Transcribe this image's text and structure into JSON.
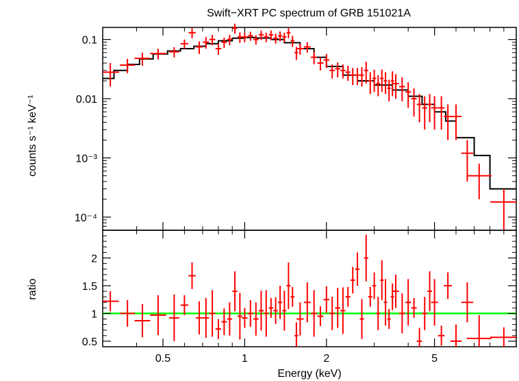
{
  "chart_data": [
    {
      "type": "scatter",
      "title": "Swift−XRT PC spectrum of GRB 151021A",
      "ylabel": "counts s⁻¹ keV⁻¹",
      "yscale": "log",
      "xscale": "log",
      "xlim": [
        0.3,
        10
      ],
      "ylim": [
        6e-05,
        0.16
      ],
      "xticks": [
        "0.5",
        "1",
        "2",
        "5"
      ],
      "yticks": [
        "0.1",
        "0.01",
        "10⁻³",
        "10⁻⁴"
      ],
      "colors": {
        "data": "#ff0000",
        "model": "#000000"
      },
      "model": {
        "name": "model",
        "x": [
          0.3,
          0.33,
          0.37,
          0.41,
          0.46,
          0.52,
          0.58,
          0.65,
          0.72,
          0.8,
          0.9,
          1.0,
          1.1,
          1.25,
          1.4,
          1.6,
          1.8,
          2.0,
          2.3,
          2.6,
          3.0,
          3.5,
          4.0,
          4.5,
          5.0,
          5.5,
          6.0,
          7.0,
          8.0,
          10.0
        ],
        "y": [
          0.022,
          0.03,
          0.038,
          0.047,
          0.057,
          0.064,
          0.07,
          0.077,
          0.085,
          0.095,
          0.105,
          0.108,
          0.106,
          0.1,
          0.088,
          0.07,
          0.05,
          0.035,
          0.025,
          0.02,
          0.017,
          0.014,
          0.011,
          0.008,
          0.006,
          0.0042,
          0.0022,
          0.0011,
          0.0003,
          0.0003
        ]
      },
      "series": [
        {
          "name": "data",
          "x": [
            0.32,
            0.37,
            0.42,
            0.48,
            0.55,
            0.6,
            0.64,
            0.68,
            0.72,
            0.76,
            0.8,
            0.84,
            0.88,
            0.92,
            0.96,
            1.0,
            1.05,
            1.1,
            1.15,
            1.2,
            1.25,
            1.3,
            1.35,
            1.4,
            1.45,
            1.5,
            1.55,
            1.6,
            1.7,
            1.8,
            1.9,
            2.0,
            2.1,
            2.2,
            2.3,
            2.4,
            2.5,
            2.6,
            2.7,
            2.8,
            2.9,
            3.0,
            3.1,
            3.2,
            3.3,
            3.4,
            3.5,
            3.6,
            3.8,
            4.0,
            4.2,
            4.4,
            4.6,
            4.8,
            5.0,
            5.3,
            5.6,
            6.0,
            6.6,
            7.3,
            9.0
          ],
          "y": [
            0.028,
            0.037,
            0.048,
            0.058,
            0.062,
            0.085,
            0.13,
            0.075,
            0.09,
            0.1,
            0.07,
            0.09,
            0.1,
            0.155,
            0.11,
            0.11,
            0.115,
            0.1,
            0.12,
            0.11,
            0.12,
            0.105,
            0.115,
            0.11,
            0.13,
            0.095,
            0.06,
            0.07,
            0.075,
            0.05,
            0.04,
            0.045,
            0.03,
            0.032,
            0.03,
            0.028,
            0.025,
            0.025,
            0.025,
            0.03,
            0.02,
            0.022,
            0.018,
            0.022,
            0.02,
            0.015,
            0.02,
            0.018,
            0.016,
            0.013,
            0.01,
            0.008,
            0.007,
            0.008,
            0.007,
            0.007,
            0.005,
            0.005,
            0.0012,
            0.0005,
            0.00018
          ],
          "err": [
            0.012,
            0.01,
            0.012,
            0.012,
            0.012,
            0.015,
            0.025,
            0.018,
            0.02,
            0.02,
            0.015,
            0.018,
            0.02,
            0.03,
            0.022,
            0.02,
            0.02,
            0.018,
            0.022,
            0.02,
            0.022,
            0.02,
            0.022,
            0.02,
            0.025,
            0.02,
            0.015,
            0.015,
            0.015,
            0.012,
            0.01,
            0.012,
            0.008,
            0.009,
            0.008,
            0.008,
            0.008,
            0.008,
            0.009,
            0.012,
            0.008,
            0.009,
            0.007,
            0.009,
            0.008,
            0.006,
            0.009,
            0.008,
            0.007,
            0.006,
            0.005,
            0.004,
            0.004,
            0.004,
            0.004,
            0.004,
            0.003,
            0.003,
            0.0008,
            0.0003,
            0.00012
          ]
        }
      ]
    },
    {
      "type": "scatter",
      "xlabel": "Energy (keV)",
      "ylabel": "ratio",
      "xscale": "log",
      "xlim": [
        0.3,
        10
      ],
      "ylim": [
        0.4,
        2.5
      ],
      "xticks": [
        "0.5",
        "1",
        "2",
        "5"
      ],
      "yticks": [
        "0.5",
        "1",
        "1.5",
        "2"
      ],
      "reference_line": 1,
      "colors": {
        "data": "#ff0000",
        "reference": "#00ff00"
      },
      "series": [
        {
          "name": "ratio",
          "x": [
            0.32,
            0.37,
            0.42,
            0.48,
            0.55,
            0.6,
            0.64,
            0.68,
            0.72,
            0.76,
            0.8,
            0.84,
            0.88,
            0.92,
            0.96,
            1.0,
            1.05,
            1.1,
            1.15,
            1.2,
            1.25,
            1.3,
            1.35,
            1.4,
            1.45,
            1.5,
            1.55,
            1.6,
            1.7,
            1.8,
            1.9,
            2.0,
            2.1,
            2.2,
            2.3,
            2.4,
            2.5,
            2.6,
            2.7,
            2.8,
            2.9,
            3.0,
            3.1,
            3.2,
            3.3,
            3.4,
            3.5,
            3.6,
            3.8,
            4.0,
            4.2,
            4.4,
            4.6,
            4.8,
            5.0,
            5.3,
            5.6,
            6.0,
            6.6,
            7.3,
            9.0
          ],
          "y": [
            1.22,
            1.0,
            0.87,
            0.97,
            0.92,
            1.15,
            1.68,
            0.92,
            0.92,
            1.0,
            0.72,
            0.85,
            0.9,
            1.4,
            0.95,
            0.92,
            1.0,
            0.9,
            1.05,
            1.0,
            1.1,
            1.05,
            1.2,
            1.05,
            1.5,
            1.3,
            0.6,
            0.9,
            1.2,
            1.0,
            0.95,
            1.25,
            1.0,
            1.1,
            1.05,
            1.3,
            1.6,
            1.8,
            0.9,
            2.0,
            1.3,
            1.5,
            1.0,
            1.6,
            1.2,
            0.9,
            1.3,
            1.4,
            1.0,
            1.2,
            1.1,
            0.5,
            1.0,
            1.4,
            1.2,
            0.6,
            1.5,
            0.5,
            1.2,
            0.55,
            0.57
          ]
        }
      ]
    }
  ]
}
